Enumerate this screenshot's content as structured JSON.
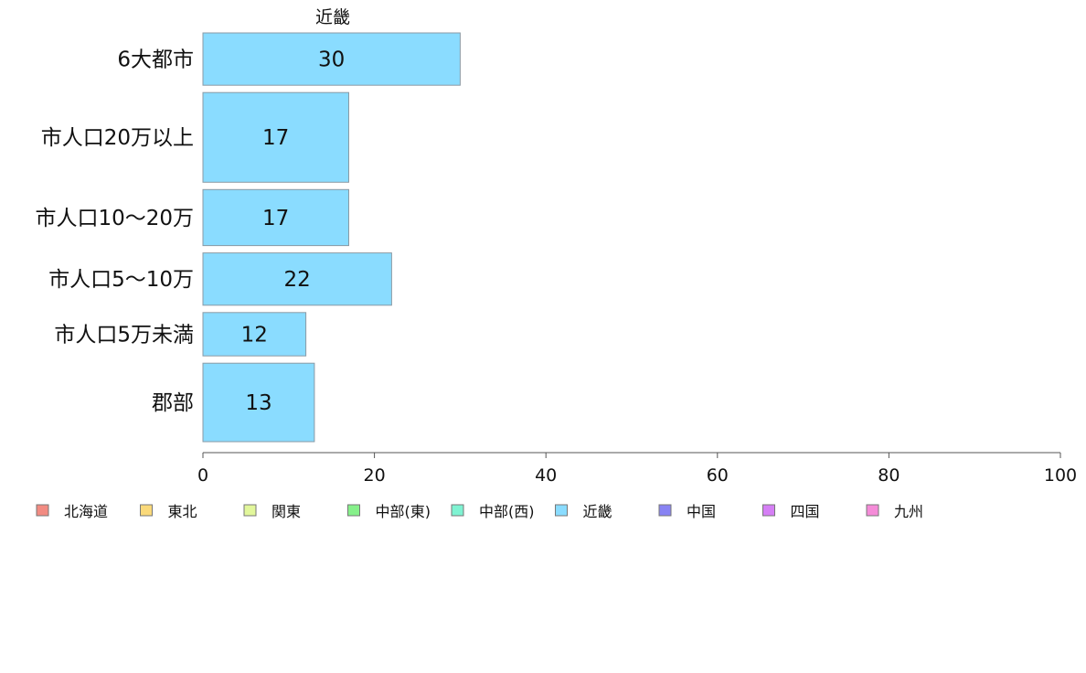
{
  "chart_data": {
    "type": "bar",
    "orientation": "horizontal",
    "title": "近畿",
    "categories": [
      "6大都市",
      "市人口20万以上",
      "市人口10〜20万",
      "市人口5〜10万",
      "市人口5万未満",
      "郡部"
    ],
    "series": [
      {
        "name": "近畿",
        "values": [
          30,
          17,
          17,
          22,
          12,
          13
        ]
      }
    ],
    "band_weights": [
      0.7,
      1.2,
      0.75,
      0.7,
      0.58,
      1.05
    ],
    "xlim": [
      0,
      100
    ],
    "xticks": [
      0,
      20,
      40,
      60,
      80,
      100
    ],
    "xlabel": "",
    "ylabel": "",
    "grid": false,
    "bar_color": "#8adcff",
    "bar_stroke": "#8a9aa4",
    "legend": {
      "placement": "bottom",
      "items": [
        {
          "label": "北海道",
          "color": "#f28b82"
        },
        {
          "label": "東北",
          "color": "#fad97a"
        },
        {
          "label": "関東",
          "color": "#e2f79b"
        },
        {
          "label": "中部(東)",
          "color": "#86f08a"
        },
        {
          "label": "中部(西)",
          "color": "#7ff3d2"
        },
        {
          "label": "近畿",
          "color": "#8adcff"
        },
        {
          "label": "中国",
          "color": "#8883f3"
        },
        {
          "label": "四国",
          "color": "#d57ff5"
        },
        {
          "label": "九州",
          "color": "#f58bd8"
        }
      ]
    }
  }
}
